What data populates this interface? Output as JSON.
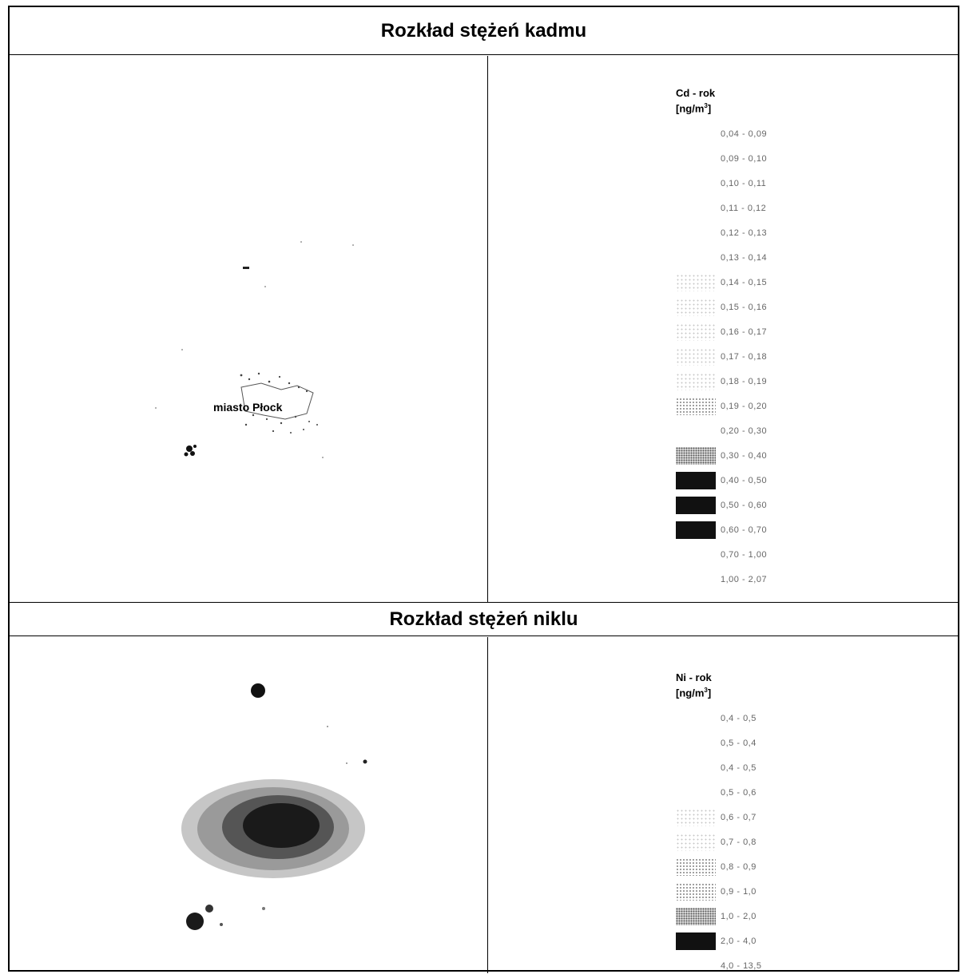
{
  "cadmium": {
    "title": "Rozkład stężeń kadmu",
    "legend_title": "Cd - rok",
    "legend_unit": "[ng/m",
    "legend_unit_sup": "3",
    "legend_unit_end": "]",
    "map_label": "miasto Płock",
    "legend": [
      {
        "label": "0,04 - 0,09",
        "fill": "blank"
      },
      {
        "label": "0,09 - 0,10",
        "fill": "blank"
      },
      {
        "label": "0,10 - 0,11",
        "fill": "blank"
      },
      {
        "label": "0,11 - 0,12",
        "fill": "blank"
      },
      {
        "label": "0,12 - 0,13",
        "fill": "blank"
      },
      {
        "label": "0,13 - 0,14",
        "fill": "blank"
      },
      {
        "label": "0,14 - 0,15",
        "fill": "faint"
      },
      {
        "label": "0,15 - 0,16",
        "fill": "faint"
      },
      {
        "label": "0,16 - 0,17",
        "fill": "faint"
      },
      {
        "label": "0,17 - 0,18",
        "fill": "faint"
      },
      {
        "label": "0,18 - 0,19",
        "fill": "faint"
      },
      {
        "label": "0,19 - 0,20",
        "fill": "light"
      },
      {
        "label": "0,20 - 0,30",
        "fill": "blank"
      },
      {
        "label": "0,30 - 0,40",
        "fill": "mid"
      },
      {
        "label": "0,40 - 0,50",
        "fill": "dark"
      },
      {
        "label": "0,50 - 0,60",
        "fill": "dark"
      },
      {
        "label": "0,60 - 0,70",
        "fill": "dark"
      },
      {
        "label": "0,70 - 1,00",
        "fill": "blank"
      },
      {
        "label": "1,00 - 2,07",
        "fill": "blank"
      }
    ]
  },
  "nickel": {
    "title": "Rozkład stężeń niklu",
    "legend_title": "Ni - rok",
    "legend_unit": "[ng/m",
    "legend_unit_sup": "3",
    "legend_unit_end": "]",
    "legend": [
      {
        "label": "0,4 - 0,5",
        "fill": "blank"
      },
      {
        "label": "0,5 - 0,4",
        "fill": "blank"
      },
      {
        "label": "0,4 - 0,5",
        "fill": "blank"
      },
      {
        "label": "0,5 - 0,6",
        "fill": "blank"
      },
      {
        "label": "0,6 - 0,7",
        "fill": "faint"
      },
      {
        "label": "0,7 - 0,8",
        "fill": "faint"
      },
      {
        "label": "0,8 - 0,9",
        "fill": "light"
      },
      {
        "label": "0,9 - 1,0",
        "fill": "light"
      },
      {
        "label": "1,0 - 2,0",
        "fill": "mid"
      },
      {
        "label": "2,0 - 4,0",
        "fill": "dark"
      },
      {
        "label": "4,0 - 13,5",
        "fill": "blank"
      }
    ]
  }
}
